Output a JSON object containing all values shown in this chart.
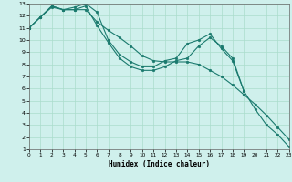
{
  "background_color": "#cff0ec",
  "grid_color": "#aaddcc",
  "line_color": "#1a7a6e",
  "xlabel": "Humidex (Indice chaleur)",
  "ylim": [
    1,
    13
  ],
  "xlim": [
    0,
    23
  ],
  "yticks": [
    1,
    2,
    3,
    4,
    5,
    6,
    7,
    8,
    9,
    10,
    11,
    12,
    13
  ],
  "xticks": [
    0,
    1,
    2,
    3,
    4,
    5,
    6,
    7,
    8,
    9,
    10,
    11,
    12,
    13,
    14,
    15,
    16,
    17,
    18,
    19,
    20,
    21,
    22,
    23
  ],
  "series": [
    {
      "x": [
        0,
        1,
        2,
        3,
        4,
        5,
        6,
        7,
        8,
        9,
        10,
        11,
        12,
        13,
        14,
        15,
        16,
        17,
        18,
        19,
        20,
        21,
        22,
        23
      ],
      "y": [
        11.0,
        11.9,
        12.8,
        12.5,
        12.5,
        12.5,
        11.5,
        10.8,
        10.2,
        9.5,
        8.7,
        8.3,
        8.2,
        8.2,
        8.2,
        8.0,
        7.5,
        7.0,
        6.3,
        5.5,
        4.7,
        3.8,
        2.8,
        1.8
      ],
      "marker": true
    },
    {
      "x": [
        0,
        1,
        2,
        3,
        4,
        5,
        6,
        7,
        8,
        9,
        10,
        11,
        12,
        13,
        14,
        15,
        16,
        17,
        18,
        19
      ],
      "y": [
        11.0,
        11.9,
        12.7,
        12.5,
        12.7,
        13.0,
        12.3,
        10.0,
        8.8,
        8.2,
        7.8,
        7.8,
        8.3,
        8.5,
        9.7,
        10.0,
        10.5,
        9.3,
        8.3,
        5.8
      ],
      "marker": true
    },
    {
      "x": [
        0,
        1,
        2,
        3,
        4,
        5,
        6,
        7,
        8,
        9,
        10,
        11,
        12,
        13,
        14,
        15,
        16,
        17,
        18,
        19,
        20,
        21,
        22,
        23
      ],
      "y": [
        11.0,
        11.9,
        12.8,
        12.5,
        12.5,
        12.8,
        11.2,
        9.8,
        8.5,
        7.8,
        7.5,
        7.5,
        7.8,
        8.3,
        8.5,
        9.5,
        10.2,
        9.5,
        8.5,
        5.8,
        4.3,
        3.0,
        2.2,
        1.2
      ],
      "marker": true
    }
  ]
}
